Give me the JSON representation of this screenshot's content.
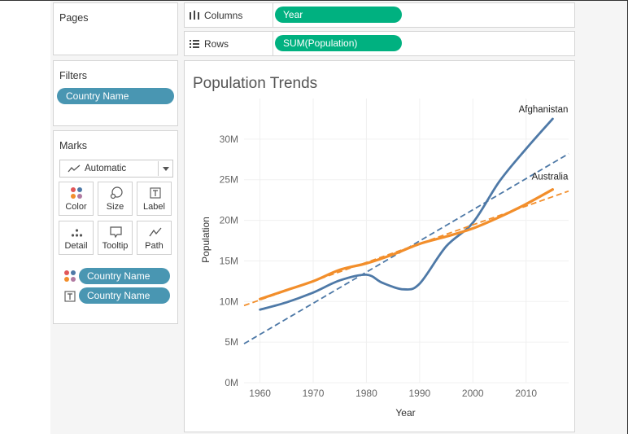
{
  "pages": {
    "title": "Pages"
  },
  "shelves": {
    "columns": {
      "label": "Columns",
      "pill": "Year",
      "icon": "columns-icon"
    },
    "rows": {
      "label": "Rows",
      "pill": "SUM(Population)",
      "icon": "rows-icon"
    }
  },
  "filters": {
    "title": "Filters",
    "pill": "Country Name"
  },
  "marks": {
    "title": "Marks",
    "type": "Automatic",
    "buttons": [
      {
        "label": "Color",
        "icon": "color-icon"
      },
      {
        "label": "Size",
        "icon": "size-icon"
      },
      {
        "label": "Label",
        "icon": "label-icon"
      },
      {
        "label": "Detail",
        "icon": "detail-icon"
      },
      {
        "label": "Tooltip",
        "icon": "tooltip-icon"
      },
      {
        "label": "Path",
        "icon": "path-icon"
      }
    ],
    "encodings": [
      {
        "icon": "color-icon",
        "pill": "Country Name"
      },
      {
        "icon": "label-icon",
        "pill": "Country Name"
      }
    ]
  },
  "colors": {
    "afghanistan": "#4e79a7",
    "australia": "#f28e2b",
    "pill_blue": "#4996b2",
    "pill_green": "#00b180"
  },
  "chart_data": {
    "type": "line",
    "title": "Population Trends",
    "xlabel": "Year",
    "ylabel": "Population",
    "xlim": [
      1957,
      2018
    ],
    "ylim": [
      0,
      35000000
    ],
    "x_ticks": [
      1960,
      1970,
      1980,
      1990,
      2000,
      2010
    ],
    "y_ticks": [
      0,
      5000000,
      10000000,
      15000000,
      20000000,
      25000000,
      30000000
    ],
    "y_tick_labels": [
      "0M",
      "5M",
      "10M",
      "15M",
      "20M",
      "25M",
      "30M"
    ],
    "grid": true,
    "series": [
      {
        "name": "Afghanistan",
        "x": [
          1960,
          1965,
          1970,
          1975,
          1980,
          1983,
          1987,
          1990,
          1995,
          2000,
          2005,
          2010,
          2015
        ],
        "values": [
          9000000,
          9900000,
          11100000,
          12600000,
          13300000,
          12300000,
          11500000,
          12200000,
          16800000,
          19700000,
          24800000,
          28800000,
          32500000
        ],
        "trend": {
          "x": [
            1957,
            2018
          ],
          "values": [
            4800000,
            28200000
          ]
        }
      },
      {
        "name": "Australia",
        "x": [
          1960,
          1965,
          1970,
          1975,
          1980,
          1985,
          1990,
          1995,
          2000,
          2005,
          2010,
          2015
        ],
        "values": [
          10300000,
          11400000,
          12500000,
          13900000,
          14700000,
          15800000,
          17100000,
          18000000,
          19000000,
          20400000,
          22000000,
          23800000
        ],
        "trend": {
          "x": [
            1957,
            2018
          ],
          "values": [
            9500000,
            23600000
          ]
        }
      }
    ]
  }
}
